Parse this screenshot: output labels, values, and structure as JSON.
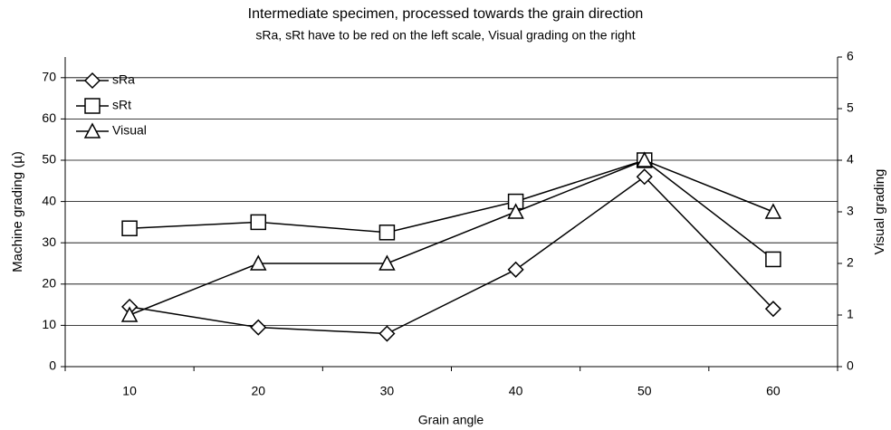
{
  "chart_data": {
    "type": "line",
    "title": "Intermediate specimen, processed towards the grain direction",
    "subtitle": "sRa, sRt have to be red on the left scale, Visual grading on the right",
    "x_label": "Grain angle",
    "y_label": "Machine grading (µ)",
    "y2_label": "Visual grading",
    "categories": [
      "10",
      "20",
      "30",
      "40",
      "50",
      "60"
    ],
    "series": [
      {
        "name": "sRa",
        "color": "#000000",
        "marker": "diamond",
        "values": [
          14.5,
          9.5,
          8,
          23.5,
          46,
          14
        ]
      },
      {
        "name": "sRt",
        "color": "#000000",
        "marker": "square",
        "values": [
          33.5,
          35,
          32.5,
          40,
          50,
          26
        ]
      },
      {
        "name": "Visual",
        "color": "#000000",
        "marker": "triangle",
        "axis": "y2",
        "values": [
          1,
          2,
          2,
          3,
          4,
          3
        ]
      }
    ],
    "ylim": [
      0,
      75
    ],
    "yticks": [
      0,
      10,
      20,
      30,
      40,
      50,
      60,
      70
    ],
    "y2lim": [
      0,
      6
    ],
    "y2ticks": [
      0,
      1,
      2,
      3,
      4,
      5,
      6
    ],
    "grid": true,
    "legend": "top-left"
  }
}
